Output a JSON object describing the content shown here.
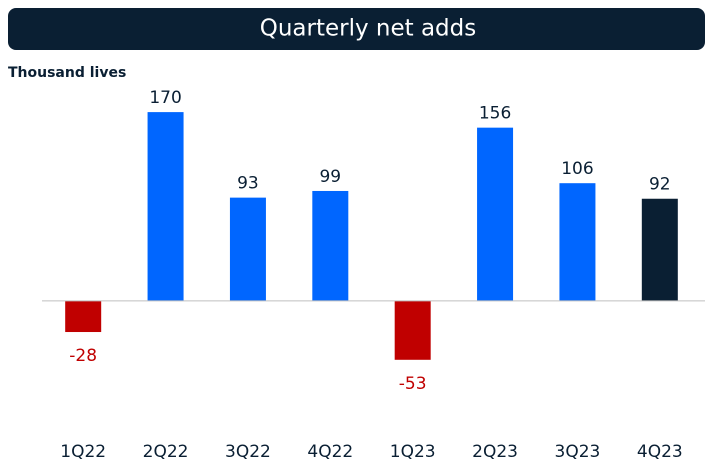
{
  "chart_data": {
    "type": "bar",
    "title": "Quarterly net adds",
    "ylabel": "Thousand lives",
    "categories": [
      "1Q22",
      "2Q22",
      "3Q22",
      "4Q22",
      "1Q23",
      "2Q23",
      "3Q23",
      "4Q23"
    ],
    "values": [
      -28,
      170,
      93,
      99,
      -53,
      156,
      106,
      92
    ],
    "colors": [
      "#c00000",
      "#0066ff",
      "#0066ff",
      "#0066ff",
      "#c00000",
      "#0066ff",
      "#0066ff",
      "#0a1f33"
    ],
    "ylim": [
      -100,
      180
    ],
    "grid": false
  }
}
